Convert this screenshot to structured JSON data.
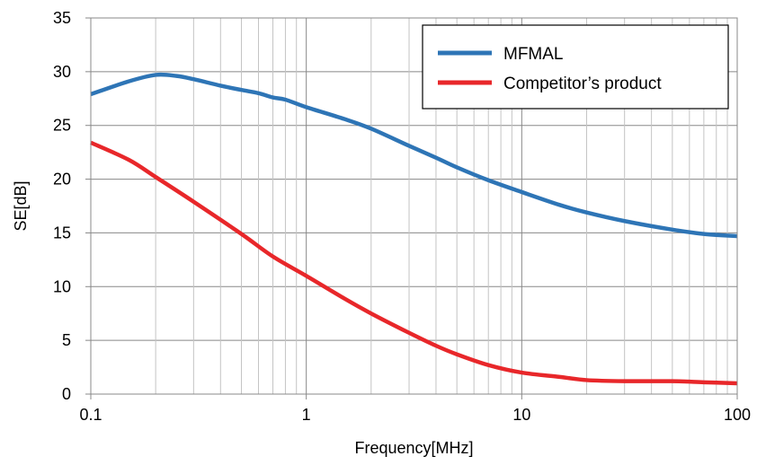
{
  "chart_data": {
    "type": "line",
    "title": "",
    "xlabel": "Frequency[MHz]",
    "ylabel": "SE[dB]",
    "x_scale": "log",
    "xlim": [
      0.1,
      100
    ],
    "ylim": [
      0,
      35
    ],
    "x_ticks": [
      0.1,
      1,
      10,
      100
    ],
    "x_tick_labels": [
      "0.1",
      "1",
      "10",
      "100"
    ],
    "y_ticks": [
      0,
      5,
      10,
      15,
      20,
      25,
      30,
      35
    ],
    "y_tick_labels": [
      "0",
      "5",
      "10",
      "15",
      "20",
      "25",
      "30",
      "35"
    ],
    "grid": true,
    "legend_position": "top-right",
    "series": [
      {
        "name": "MFMAL",
        "color": "#2e75b6",
        "x": [
          0.1,
          0.15,
          0.2,
          0.25,
          0.3,
          0.4,
          0.5,
          0.6,
          0.7,
          0.8,
          1,
          1.5,
          2,
          3,
          4,
          5,
          7,
          10,
          15,
          20,
          30,
          50,
          70,
          100
        ],
        "y": [
          27.9,
          29.1,
          29.7,
          29.6,
          29.3,
          28.7,
          28.3,
          28.0,
          27.6,
          27.4,
          26.7,
          25.6,
          24.7,
          23.1,
          22.0,
          21.1,
          19.9,
          18.8,
          17.6,
          16.9,
          16.1,
          15.3,
          14.9,
          14.7
        ]
      },
      {
        "name": "Competitor’s product",
        "color": "#e8272a",
        "x": [
          0.1,
          0.15,
          0.2,
          0.3,
          0.5,
          0.7,
          1,
          1.5,
          2,
          3,
          4,
          5,
          7,
          10,
          15,
          20,
          30,
          50,
          70,
          100
        ],
        "y": [
          23.4,
          21.8,
          20.2,
          17.9,
          14.9,
          12.8,
          11.0,
          8.9,
          7.5,
          5.7,
          4.5,
          3.7,
          2.7,
          2.0,
          1.6,
          1.3,
          1.2,
          1.2,
          1.1,
          1.0
        ]
      }
    ]
  }
}
